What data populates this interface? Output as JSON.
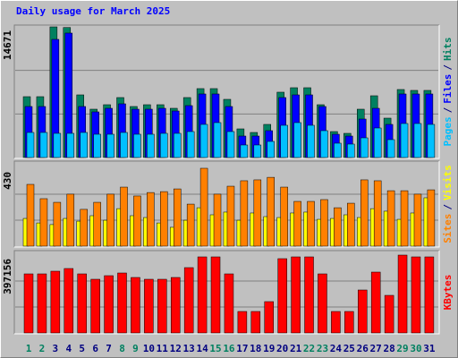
{
  "chart_data": [
    {
      "type": "bar",
      "title": "Daily usage for March 2025",
      "ylim": [
        0,
        14671
      ],
      "yticks": [
        14671
      ],
      "grid": true,
      "series": [
        {
          "name": "Hits",
          "color": "#008060",
          "values": [
            6834,
            6834,
            14671,
            14600,
            7035,
            5427,
            5930,
            6734,
            5729,
            5930,
            5930,
            5528,
            6734,
            7739,
            7739,
            6533,
            3216,
            2814,
            3719,
            7337,
            7839,
            7839,
            5930,
            2915,
            2714,
            5427,
            6935,
            4422,
            7638,
            7538,
            7538
          ]
        },
        {
          "name": "Files",
          "color": "#0000ff",
          "values": [
            5729,
            5729,
            13266,
            13970,
            5729,
            5126,
            5528,
            6030,
            5427,
            5427,
            5528,
            5226,
            5829,
            7136,
            7136,
            5729,
            2412,
            2412,
            3015,
            6734,
            7035,
            7035,
            5729,
            2613,
            2412,
            4322,
            5528,
            3719,
            7136,
            7136,
            7136
          ]
        },
        {
          "name": "Pages",
          "color": "#00c0ff",
          "values": [
            2814,
            2814,
            2714,
            2714,
            2814,
            2613,
            2613,
            2814,
            2613,
            2613,
            2714,
            2714,
            2915,
            3719,
            3920,
            2915,
            1407,
            1407,
            1809,
            3618,
            3920,
            3618,
            3015,
            1608,
            1508,
            2211,
            3317,
            2010,
            3819,
            3819,
            3719
          ]
        }
      ],
      "legend_separator": "/"
    },
    {
      "type": "bar",
      "ylim": [
        0,
        430
      ],
      "yticks": [
        430
      ],
      "grid": true,
      "series": [
        {
          "name": "Visits",
          "color": "#ffff00",
          "values": [
            153,
            128,
            119,
            153,
            138,
            168,
            143,
            207,
            168,
            158,
            128,
            104,
            143,
            212,
            173,
            188,
            143,
            183,
            163,
            158,
            183,
            188,
            148,
            153,
            173,
            158,
            207,
            193,
            148,
            183,
            267
          ]
        },
        {
          "name": "Sites",
          "color": "#ff8000",
          "values": [
            341,
            262,
            242,
            287,
            203,
            242,
            287,
            326,
            277,
            296,
            301,
            316,
            232,
            430,
            287,
            331,
            361,
            366,
            380,
            326,
            247,
            247,
            257,
            212,
            237,
            366,
            361,
            306,
            306,
            287,
            311
          ]
        }
      ],
      "legend_separator": "/"
    },
    {
      "type": "bar",
      "ylim": [
        0,
        397156
      ],
      "yticks": [
        397156
      ],
      "grid": true,
      "series": [
        {
          "name": "KBytes",
          "color": "#ff0000",
          "values": [
            301290,
            301290,
            314985,
            328680,
            301290,
            273900,
            292160,
            305855,
            283030,
            273900,
            273900,
            283030,
            333245,
            388025,
            388025,
            301290,
            109560,
            109560,
            159775,
            378895,
            388025,
            388025,
            301290,
            109560,
            109560,
            219120,
            310420,
            191730,
            397156,
            388025,
            388025
          ]
        }
      ],
      "categories": [
        "1",
        "2",
        "3",
        "4",
        "5",
        "6",
        "7",
        "8",
        "9",
        "10",
        "11",
        "12",
        "13",
        "14",
        "15",
        "16",
        "17",
        "18",
        "19",
        "20",
        "21",
        "22",
        "23",
        "24",
        "25",
        "26",
        "27",
        "28",
        "29",
        "30",
        "31"
      ],
      "category_colors": [
        "#008060",
        "#008060",
        "#000080",
        "#000080",
        "#000080",
        "#000080",
        "#000080",
        "#008060",
        "#008060",
        "#000080",
        "#000080",
        "#000080",
        "#000080",
        "#000080",
        "#008060",
        "#008060",
        "#000080",
        "#000080",
        "#000080",
        "#000080",
        "#000080",
        "#008060",
        "#008060",
        "#000080",
        "#000080",
        "#000080",
        "#000080",
        "#000080",
        "#008060",
        "#008060",
        "#000080"
      ]
    }
  ]
}
